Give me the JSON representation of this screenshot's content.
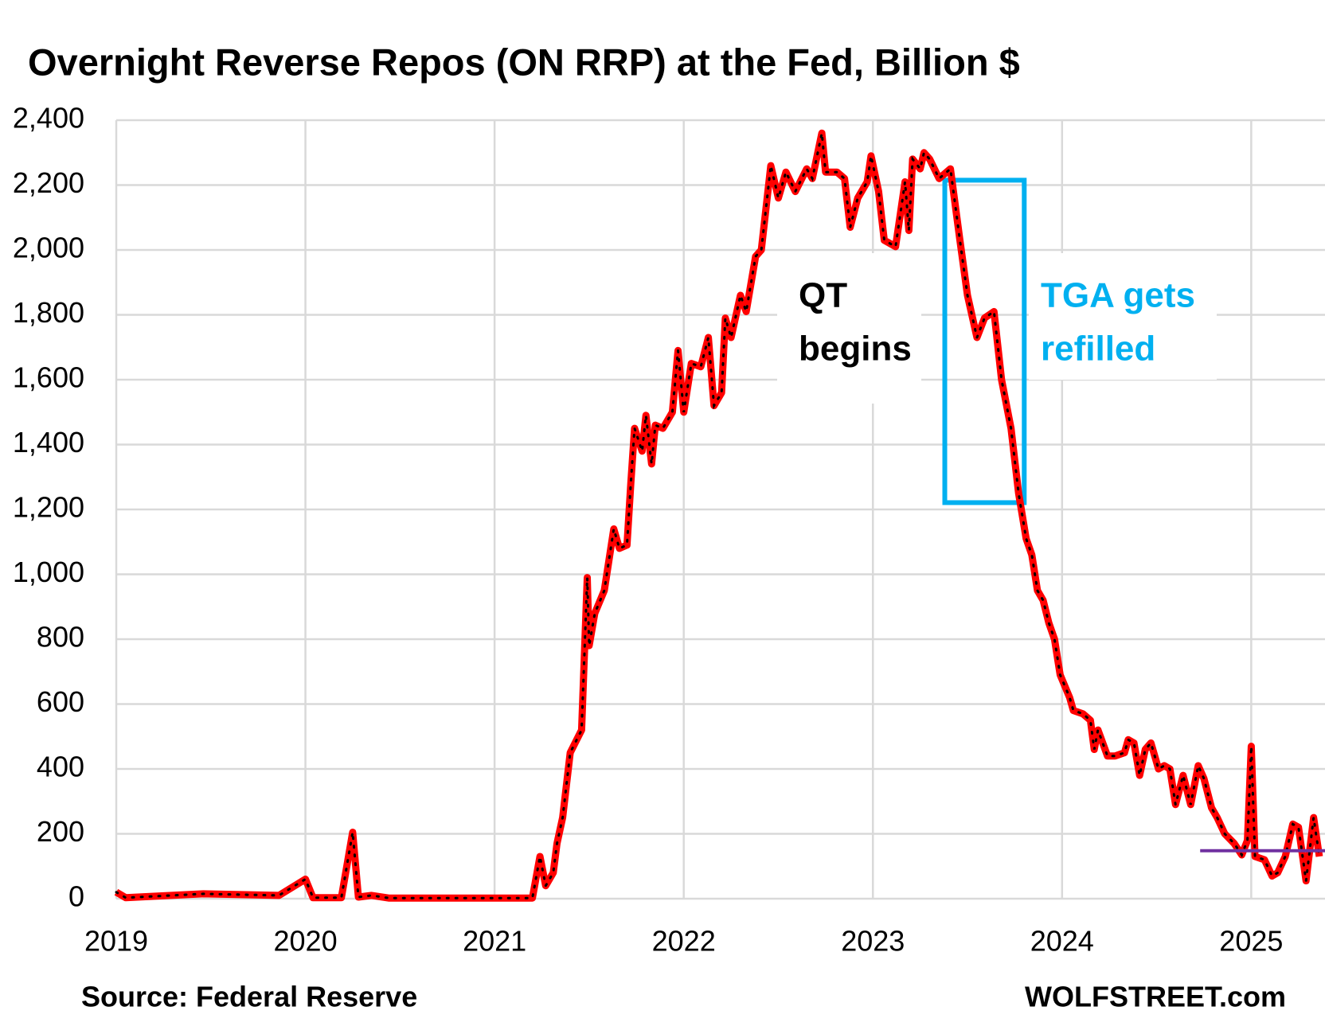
{
  "chart_data": {
    "type": "line",
    "title": "Overnight Reverse Repos (ON RRP) at the Fed, Billion $",
    "source": "Source: Federal Reserve",
    "credit": "WOLFSTREET.com",
    "color": "#ff0000",
    "x": [
      2019.0,
      2019.05,
      2019.46,
      2019.86,
      2020.0,
      2020.04,
      2020.19,
      2020.25,
      2020.28,
      2020.35,
      2020.44,
      2021.2,
      2021.24,
      2021.27,
      2021.31,
      2021.33,
      2021.36,
      2021.4,
      2021.46,
      2021.49,
      2021.5,
      2021.53,
      2021.58,
      2021.63,
      2021.66,
      2021.7,
      2021.72,
      2021.74,
      2021.78,
      2021.8,
      2021.83,
      2021.85,
      2021.89,
      2021.94,
      2021.97,
      2022.0,
      2022.04,
      2022.09,
      2022.13,
      2022.16,
      2022.2,
      2022.22,
      2022.25,
      2022.3,
      2022.33,
      2022.38,
      2022.41,
      2022.46,
      2022.5,
      2022.54,
      2022.59,
      2022.65,
      2022.68,
      2022.73,
      2022.75,
      2022.81,
      2022.85,
      2022.88,
      2022.92,
      2022.97,
      2022.99,
      2023.03,
      2023.06,
      2023.12,
      2023.17,
      2023.19,
      2023.21,
      2023.25,
      2023.27,
      2023.3,
      2023.35,
      2023.41,
      2023.46,
      2023.5,
      2023.55,
      2023.59,
      2023.64,
      2023.68,
      2023.73,
      2023.77,
      2023.81,
      2023.84,
      2023.87,
      2023.9,
      2023.93,
      2023.96,
      2023.99,
      2024.04,
      2024.06,
      2024.11,
      2024.15,
      2024.17,
      2024.19,
      2024.24,
      2024.28,
      2024.33,
      2024.35,
      2024.38,
      2024.41,
      2024.44,
      2024.47,
      2024.51,
      2024.54,
      2024.57,
      2024.6,
      2024.64,
      2024.68,
      2024.72,
      2024.75,
      2024.79,
      2024.82,
      2024.86,
      2024.91,
      2024.95,
      2024.98,
      2025.0,
      2025.02,
      2025.07,
      2025.11,
      2025.14,
      2025.18,
      2025.22,
      2025.25,
      2025.29,
      2025.33,
      2025.36
    ],
    "values": [
      20,
      3,
      15,
      10,
      60,
      3,
      3,
      205,
      5,
      10,
      2,
      2,
      130,
      40,
      80,
      170,
      250,
      450,
      520,
      990,
      780,
      880,
      950,
      1140,
      1080,
      1090,
      1280,
      1450,
      1380,
      1490,
      1340,
      1460,
      1450,
      1500,
      1690,
      1500,
      1650,
      1640,
      1730,
      1520,
      1560,
      1790,
      1730,
      1860,
      1810,
      1980,
      2000,
      2260,
      2160,
      2240,
      2180,
      2250,
      2220,
      2360,
      2240,
      2240,
      2220,
      2070,
      2160,
      2210,
      2290,
      2180,
      2030,
      2010,
      2210,
      2060,
      2280,
      2250,
      2300,
      2280,
      2220,
      2250,
      2030,
      1860,
      1730,
      1790,
      1810,
      1600,
      1450,
      1250,
      1110,
      1060,
      950,
      920,
      850,
      800,
      690,
      620,
      580,
      570,
      550,
      460,
      520,
      440,
      440,
      450,
      490,
      480,
      380,
      460,
      480,
      400,
      410,
      400,
      290,
      380,
      290,
      410,
      370,
      280,
      250,
      200,
      170,
      135,
      180,
      470,
      130,
      120,
      70,
      80,
      130,
      230,
      220,
      55,
      250,
      130
    ],
    "xlim": [
      2019,
      2025.39
    ],
    "ylim": [
      0,
      2400
    ],
    "xticks": [
      2019,
      2020,
      2021,
      2022,
      2023,
      2024,
      2025
    ],
    "yticks": [
      0,
      200,
      400,
      600,
      800,
      {
        "value": 1000,
        "label": "1,000"
      },
      {
        "value": 1200,
        "label": "1,200"
      },
      {
        "value": 1400,
        "label": "1,400"
      },
      {
        "value": 1600,
        "label": "1,600"
      },
      {
        "value": 1800,
        "label": "1,800"
      },
      {
        "value": 2000,
        "label": "2,000"
      },
      {
        "value": 2200,
        "label": "2,200"
      },
      {
        "value": 2400,
        "label": "2,400"
      }
    ],
    "grid": true,
    "reference_line": {
      "value": 148,
      "x": [
        2024.73,
        2025.39
      ],
      "color": "#7030a0"
    },
    "box": {
      "x": [
        2023.38,
        2023.8
      ],
      "y": [
        1221,
        2215
      ],
      "color": "#00b0f0"
    },
    "annotations": [
      {
        "lines": [
          "QT",
          "begins"
        ],
        "color": "#000000"
      },
      {
        "lines": [
          "TGA gets",
          "refilled"
        ],
        "color": "#00b0f0"
      }
    ]
  }
}
